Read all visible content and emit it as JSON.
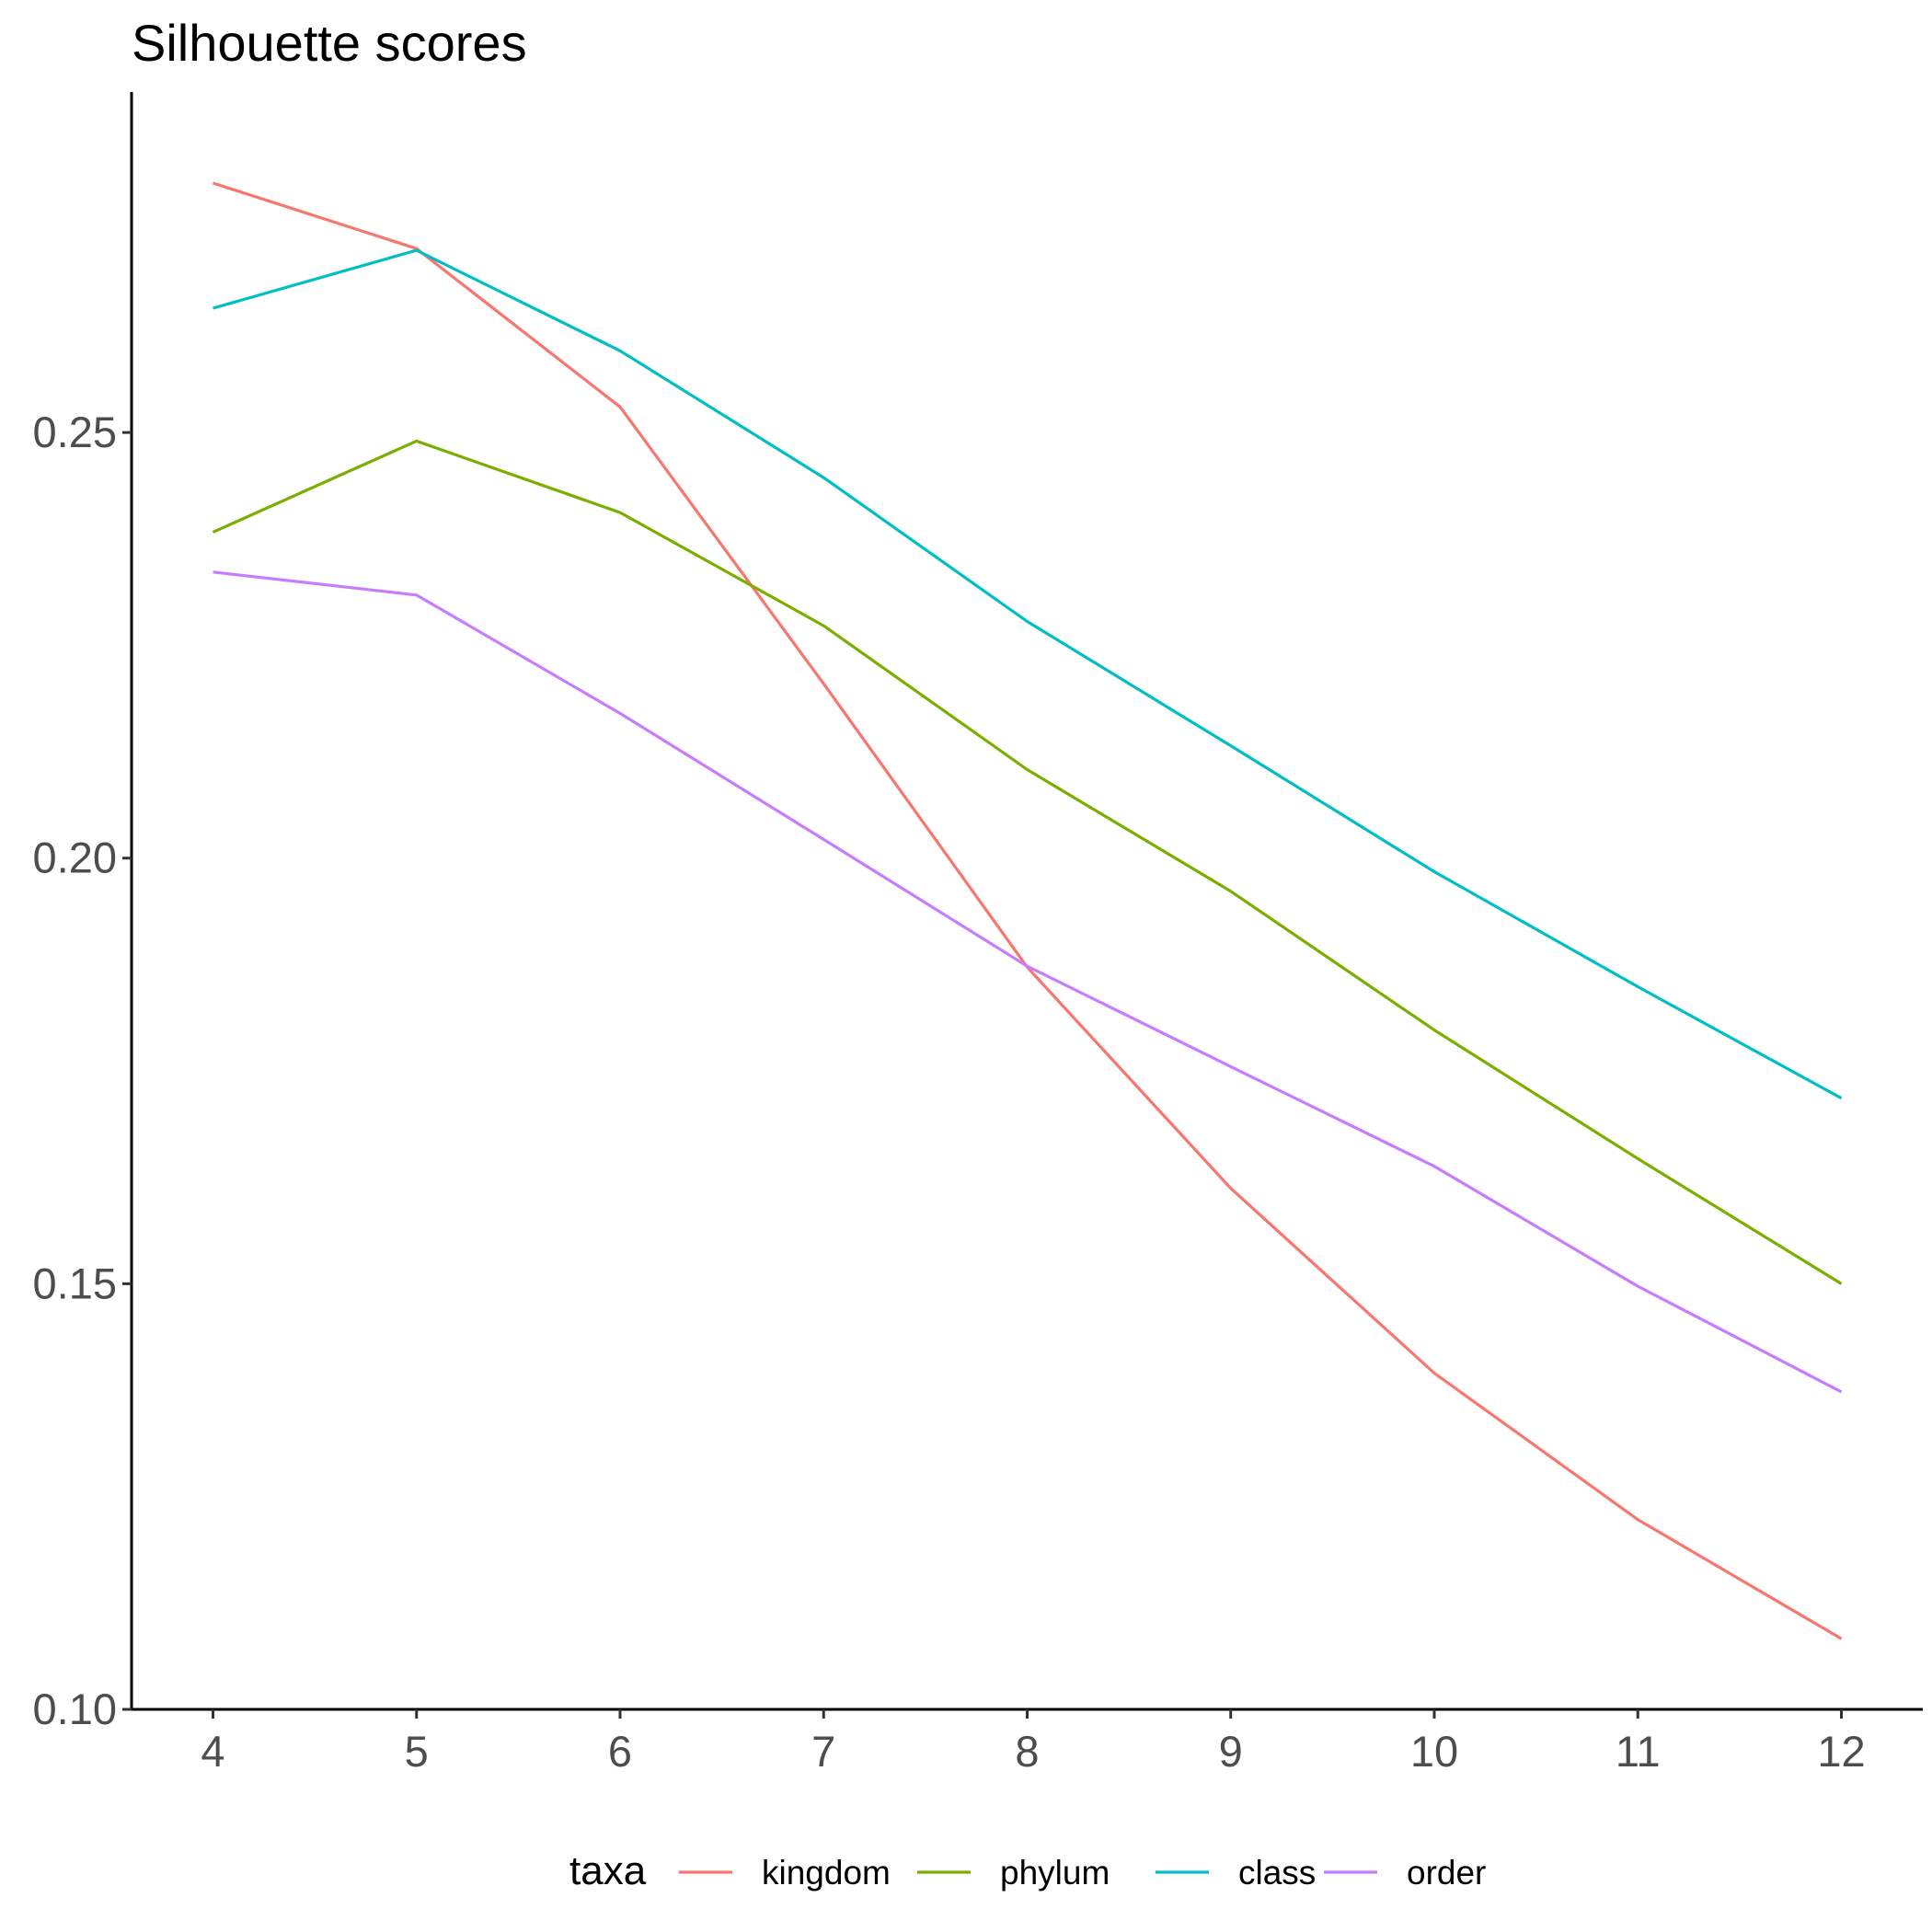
{
  "chart_data": {
    "type": "line",
    "title": "Silhouette scores",
    "xlabel": "",
    "ylabel": "",
    "x": [
      4,
      5,
      6,
      7,
      8,
      9,
      10,
      11,
      12
    ],
    "xlim": [
      3.6,
      12.4
    ],
    "ylim": [
      0.1,
      0.29
    ],
    "x_ticks": [
      "4",
      "5",
      "6",
      "7",
      "8",
      "9",
      "10",
      "11",
      "12"
    ],
    "y_ticks": [
      {
        "value": 0.1,
        "label": "0.10"
      },
      {
        "value": 0.15,
        "label": "0.15"
      },
      {
        "value": 0.2,
        "label": "0.20"
      },
      {
        "value": 0.25,
        "label": "0.25"
      }
    ],
    "grid": false,
    "legend": {
      "position": "bottom",
      "title": "taxa"
    },
    "series": [
      {
        "name": "kingdom",
        "color": "#F8766D",
        "values": [
          0.2793,
          0.2716,
          0.253,
          0.2205,
          0.1872,
          0.1612,
          0.1395,
          0.1223,
          0.1083
        ]
      },
      {
        "name": "phylum",
        "color": "#7CAE00",
        "values": [
          0.2383,
          0.249,
          0.2406,
          0.2273,
          0.2104,
          0.1961,
          0.1798,
          0.1647,
          0.15
        ]
      },
      {
        "name": "class",
        "color": "#00BFC4",
        "values": [
          0.2646,
          0.2714,
          0.2596,
          0.2447,
          0.2278,
          0.2132,
          0.1984,
          0.1849,
          0.1718
        ]
      },
      {
        "name": "order",
        "color": "#C77CFF",
        "values": [
          0.2336,
          0.2309,
          0.217,
          0.2022,
          0.1873,
          0.1755,
          0.1638,
          0.1497,
          0.1373
        ]
      }
    ]
  }
}
